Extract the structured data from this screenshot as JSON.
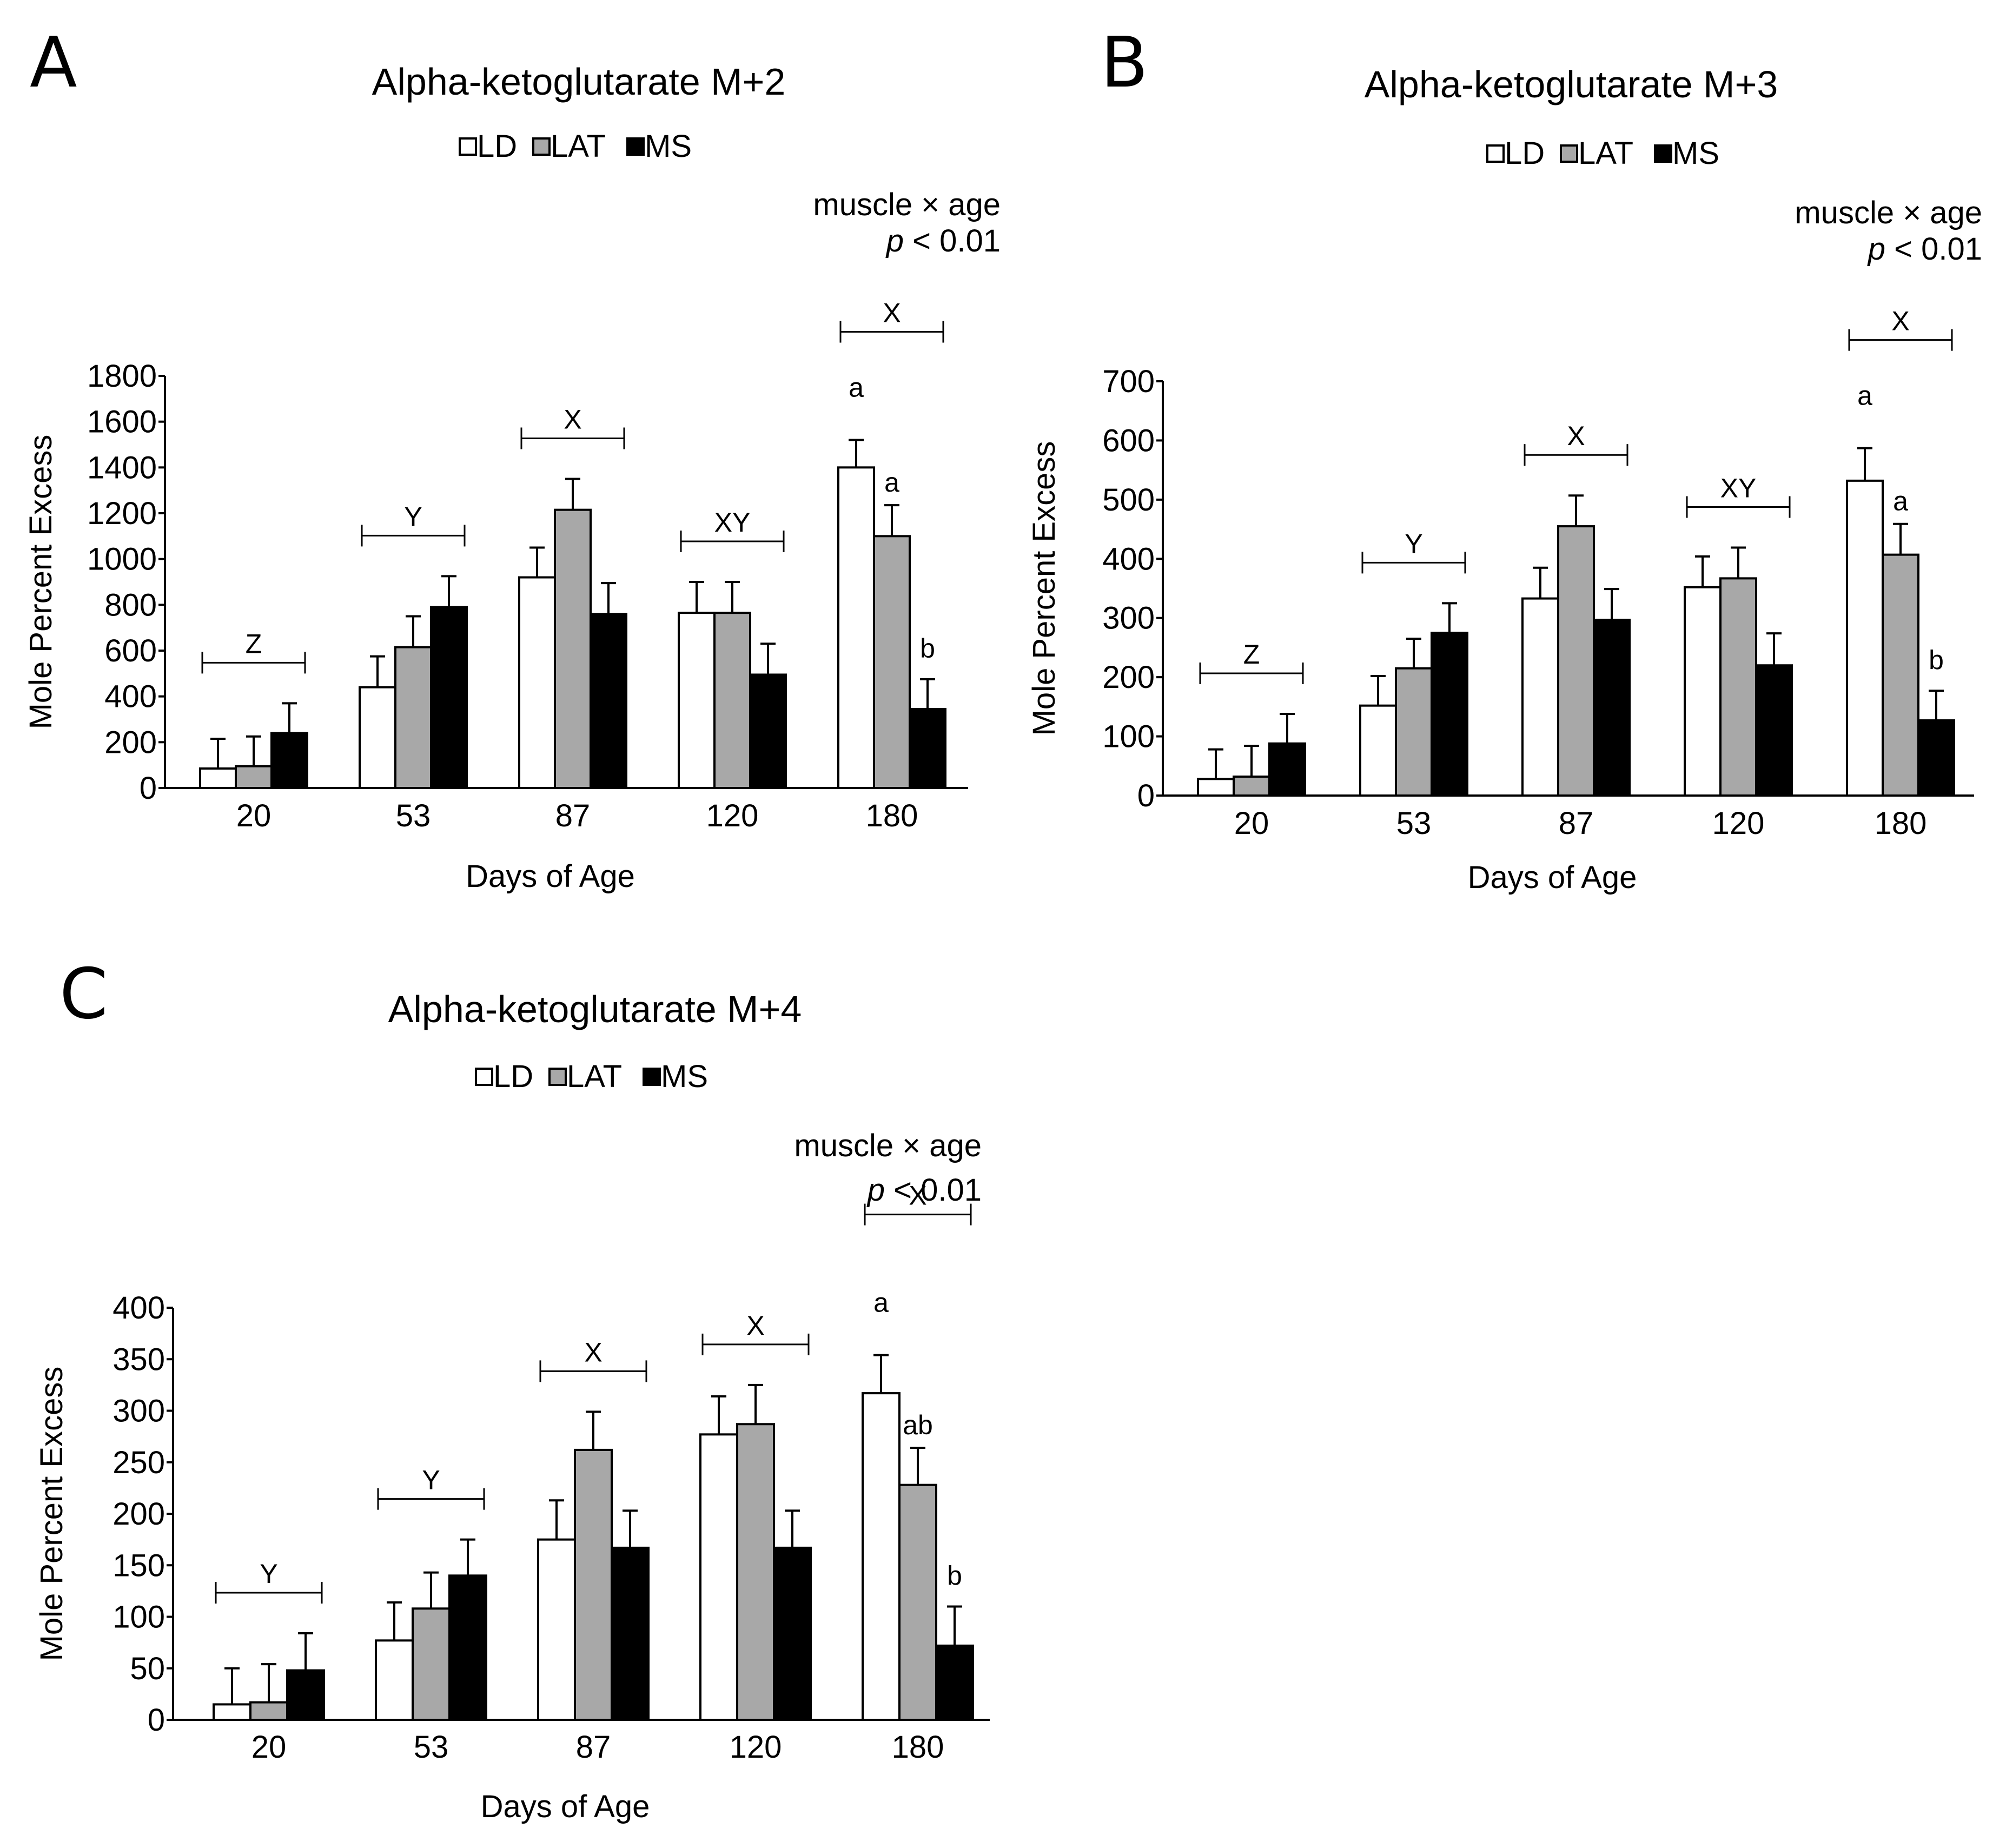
{
  "legend": {
    "series": [
      "LD",
      "LAT",
      "MS"
    ]
  },
  "colors": {
    "LD": "#ffffff",
    "LAT": "#a8a8a8",
    "MS": "#000000",
    "stroke": "#000000"
  },
  "chart_data": [
    {
      "panel": "A",
      "type": "bar",
      "title": "Alpha-ketoglutarate M+2",
      "xlabel": "Days of Age",
      "ylabel": "Mole Percent Excess",
      "ylim": [
        0,
        1800
      ],
      "yticks": [
        0,
        200,
        400,
        600,
        800,
        1000,
        1200,
        1400,
        1600,
        1800
      ],
      "categories": [
        "20",
        "53",
        "87",
        "120",
        "180"
      ],
      "series": [
        {
          "name": "LD",
          "values": [
            85,
            440,
            920,
            765,
            1400
          ],
          "errors": [
            130,
            135,
            130,
            135,
            120
          ]
        },
        {
          "name": "LAT",
          "values": [
            95,
            615,
            1215,
            765,
            1100
          ],
          "errors": [
            130,
            135,
            135,
            135,
            135
          ]
        },
        {
          "name": "MS",
          "values": [
            240,
            790,
            760,
            495,
            345
          ],
          "errors": [
            130,
            135,
            135,
            135,
            130
          ]
        }
      ],
      "stats": [
        "muscle × age",
        "p < 0.01"
      ],
      "group_labels": [
        "Z",
        "Y",
        "X",
        "XY",
        "X"
      ],
      "bar_letters": [
        {
          "category": "180",
          "series": "LD",
          "text": "a"
        },
        {
          "category": "180",
          "series": "LAT",
          "text": "a"
        },
        {
          "category": "180",
          "series": "MS",
          "text": "b"
        }
      ]
    },
    {
      "panel": "B",
      "type": "bar",
      "title": "Alpha-ketoglutarate M+3",
      "xlabel": "Days of Age",
      "ylabel": "Mole Percent Excess",
      "ylim": [
        0,
        700
      ],
      "yticks": [
        0,
        100,
        200,
        300,
        400,
        500,
        600,
        700
      ],
      "categories": [
        "20",
        "53",
        "87",
        "120",
        "180"
      ],
      "series": [
        {
          "name": "LD",
          "values": [
            28,
            152,
            333,
            352,
            532
          ],
          "errors": [
            50,
            50,
            52,
            52,
            55
          ]
        },
        {
          "name": "LAT",
          "values": [
            32,
            215,
            455,
            367,
            407
          ],
          "errors": [
            52,
            50,
            52,
            52,
            52
          ]
        },
        {
          "name": "MS",
          "values": [
            88,
            275,
            297,
            220,
            127
          ],
          "errors": [
            50,
            50,
            52,
            54,
            50
          ]
        }
      ],
      "stats": [
        "muscle × age",
        "p < 0.01"
      ],
      "group_labels": [
        "Z",
        "Y",
        "X",
        "XY",
        "X"
      ],
      "bar_letters": [
        {
          "category": "180",
          "series": "LD",
          "text": "a"
        },
        {
          "category": "180",
          "series": "LAT",
          "text": "a"
        },
        {
          "category": "180",
          "series": "MS",
          "text": "b"
        }
      ]
    },
    {
      "panel": "C",
      "type": "bar",
      "title": "Alpha-ketoglutarate M+4",
      "xlabel": "Days of Age",
      "ylabel": "Mole Percent Excess",
      "ylim": [
        0,
        400
      ],
      "yticks": [
        0,
        50,
        100,
        150,
        200,
        250,
        300,
        350,
        400
      ],
      "categories": [
        "20",
        "53",
        "87",
        "120",
        "180"
      ],
      "series": [
        {
          "name": "LD",
          "values": [
            15,
            77,
            175,
            277,
            317
          ],
          "errors": [
            35,
            37,
            38,
            37,
            37
          ]
        },
        {
          "name": "LAT",
          "values": [
            17,
            108,
            262,
            287,
            228
          ],
          "errors": [
            37,
            35,
            37,
            38,
            36
          ]
        },
        {
          "name": "MS",
          "values": [
            48,
            140,
            167,
            167,
            72
          ],
          "errors": [
            36,
            35,
            36,
            36,
            38
          ]
        }
      ],
      "stats": [
        "muscle × age",
        "p < 0.01"
      ],
      "group_labels": [
        "Y",
        "Y",
        "X",
        "X",
        "X"
      ],
      "bar_letters": [
        {
          "category": "180",
          "series": "LD",
          "text": "a"
        },
        {
          "category": "180",
          "series": "LAT",
          "text": "ab"
        },
        {
          "category": "180",
          "series": "MS",
          "text": "b"
        }
      ]
    }
  ]
}
